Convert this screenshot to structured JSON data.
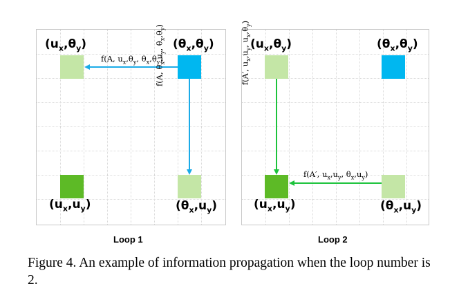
{
  "colors": {
    "light_green": "#c4e6a6",
    "dark_green": "#5dba26",
    "cyan": "#00b7f0",
    "blue_arrow": "#1aabe8",
    "green_arrow": "#1cc33b"
  },
  "loop1": {
    "label": "Loop 1",
    "nodes": {
      "top_left": [
        "(u",
        "x",
        ",θ",
        "y",
        ")"
      ],
      "top_right": [
        "(θ",
        "x",
        ",θ",
        "y",
        ")"
      ],
      "bottom_left": [
        "(u",
        "x",
        ",u",
        "y",
        ")"
      ],
      "bottom_right": [
        "(θ",
        "x",
        ",u",
        "y",
        ")"
      ]
    },
    "edges": {
      "horizontal": [
        "f(A, u",
        "x",
        ",θ",
        "y",
        ", θ",
        "x",
        ",θ",
        "y",
        ")"
      ],
      "vertical": [
        "f(A, θ",
        "x",
        ",u",
        "y",
        ", θ",
        "x",
        ",θ",
        "y",
        ")"
      ]
    }
  },
  "loop2": {
    "label": "Loop 2",
    "nodes": {
      "top_left": [
        "(u",
        "x",
        ",θ",
        "y",
        ")"
      ],
      "top_right": [
        "(θ",
        "x",
        ",θ",
        "y",
        ")"
      ],
      "bottom_left": [
        "(u",
        "x",
        ",u",
        "y",
        ")"
      ],
      "bottom_right": [
        "(θ",
        "x",
        ",u",
        "y",
        ")"
      ]
    },
    "edges": {
      "horizontal": [
        "f(A′, u",
        "x",
        ",u",
        "y",
        ", θ",
        "x",
        ",u",
        "y",
        ")"
      ],
      "vertical": [
        "f(A′, u",
        "x",
        ",u",
        "y",
        ", u",
        "x",
        ",θ",
        "y",
        ")"
      ]
    }
  },
  "caption": "Figure 4. An example of information propagation when the loop number is 2."
}
